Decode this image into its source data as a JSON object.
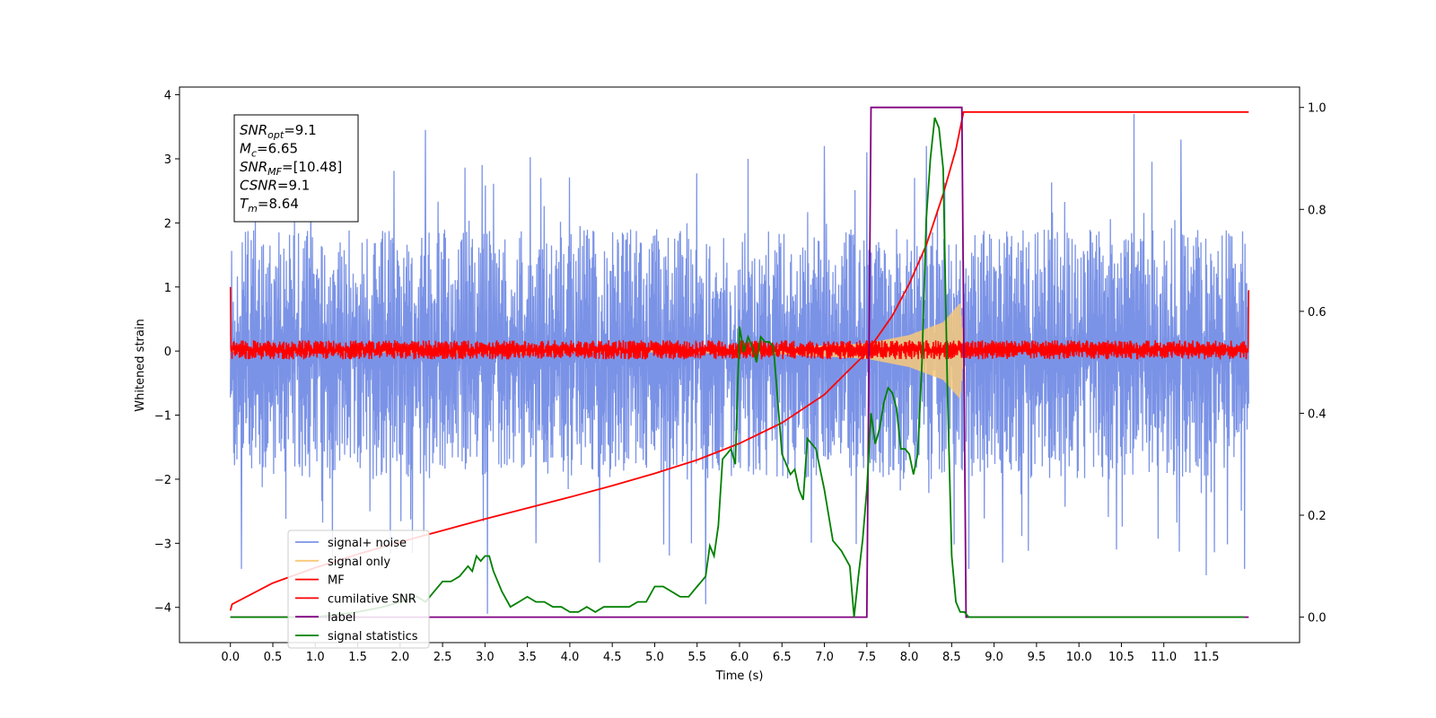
{
  "chart_data": {
    "type": "line",
    "xlabel": "Time (s)",
    "ylabel": "Whitened strain",
    "xlim": [
      -0.6,
      12.6
    ],
    "ylim": [
      -4.55,
      4.12
    ],
    "y2lim": [
      -0.05,
      1.04
    ],
    "xticks": [
      "0.0",
      "0.5",
      "1.0",
      "1.5",
      "2.0",
      "2.5",
      "3.0",
      "3.5",
      "4.0",
      "4.5",
      "5.0",
      "5.5",
      "6.0",
      "6.5",
      "7.0",
      "7.5",
      "8.0",
      "8.5",
      "9.0",
      "9.5",
      "10.0",
      "10.5",
      "11.0",
      "11.5"
    ],
    "yticks": [
      "4",
      "3",
      "2",
      "1",
      "0",
      "−1",
      "−2",
      "−3",
      "−4"
    ],
    "y2ticks": [
      "1.0",
      "0.8",
      "0.6",
      "0.4",
      "0.2",
      "0.0"
    ],
    "annotation": {
      "lines": [
        {
          "base": "SNR",
          "sub": "opt",
          "rest": "=9.1"
        },
        {
          "base": "M",
          "sub": "c",
          "rest": "=6.65"
        },
        {
          "base": "SNR",
          "sub": "MF",
          "rest": "=[10.48]"
        },
        {
          "base": "CSNR",
          "sub": "",
          "rest": "=9.1"
        },
        {
          "base": "T",
          "sub": "m",
          "rest": "=8.64"
        }
      ]
    },
    "legend": {
      "position": "lower-left",
      "entries": [
        {
          "label": "signal+ noise",
          "color": "#7b93e6"
        },
        {
          "label": "signal only",
          "color": "#f7c97a"
        },
        {
          "label": "MF",
          "color": "#ff0000"
        },
        {
          "label": "cumilative SNR",
          "color": "#ff0000"
        },
        {
          "label": "label",
          "color": "#800080"
        },
        {
          "label": "signal statistics",
          "color": "#008000"
        }
      ]
    },
    "series": [
      {
        "name": "signal+ noise",
        "axis": "left",
        "color": "#7b93e6",
        "kind": "noise_band",
        "x_range": [
          0.0,
          12.0
        ],
        "band": [
          -2.0,
          1.9
        ],
        "spikes": [
          [
            0.13,
            -3.4
          ],
          [
            1.2,
            -3.2
          ],
          [
            2.3,
            3.45
          ],
          [
            3.03,
            -4.1
          ],
          [
            3.6,
            -3.0
          ],
          [
            4.35,
            -3.3
          ],
          [
            5.6,
            -3.95
          ],
          [
            6.1,
            3.0
          ],
          [
            7.0,
            3.2
          ],
          [
            7.5,
            3.1
          ],
          [
            8.2,
            3.2
          ],
          [
            8.7,
            -3.4
          ],
          [
            9.1,
            -3.3
          ],
          [
            10.65,
            3.7
          ],
          [
            11.2,
            3.3
          ],
          [
            11.5,
            -3.5
          ],
          [
            11.95,
            -3.4
          ]
        ]
      },
      {
        "name": "signal only",
        "axis": "left",
        "color": "#f7c97a",
        "kind": "chirp_envelope",
        "x_range": [
          0.0,
          8.65
        ],
        "amplitude": [
          [
            0.0,
            0.005
          ],
          [
            5.0,
            0.02
          ],
          [
            6.5,
            0.05
          ],
          [
            7.5,
            0.12
          ],
          [
            8.0,
            0.25
          ],
          [
            8.4,
            0.45
          ],
          [
            8.6,
            0.75
          ],
          [
            8.65,
            0.0
          ]
        ]
      },
      {
        "name": "MF",
        "axis": "left",
        "color": "#ff0000",
        "kind": "noise_band",
        "x_range": [
          0.0,
          12.0
        ],
        "band": [
          -0.13,
          0.17
        ],
        "edges": [
          [
            0.0,
            1.0
          ],
          [
            12.0,
            0.95
          ]
        ]
      },
      {
        "name": "cumilative SNR",
        "axis": "left",
        "color": "#ff0000",
        "x": [
          0.0,
          0.02,
          0.5,
          1.0,
          1.5,
          2.0,
          2.5,
          3.0,
          3.5,
          4.0,
          4.5,
          5.0,
          5.5,
          6.0,
          6.5,
          7.0,
          7.5,
          7.8,
          8.0,
          8.2,
          8.4,
          8.55,
          8.64,
          9.0,
          10.0,
          11.0,
          12.0
        ],
        "y": [
          -4.05,
          -3.95,
          -3.62,
          -3.38,
          -3.17,
          -2.98,
          -2.8,
          -2.62,
          -2.45,
          -2.28,
          -2.1,
          -1.91,
          -1.7,
          -1.44,
          -1.12,
          -0.68,
          -0.02,
          0.55,
          1.05,
          1.65,
          2.45,
          3.15,
          3.73,
          3.73,
          3.73,
          3.73,
          3.73
        ]
      },
      {
        "name": "label",
        "axis": "right",
        "color": "#800080",
        "x": [
          0.0,
          7.5,
          7.55,
          8.62,
          8.67,
          12.0
        ],
        "y": [
          0.0,
          0.0,
          1.0,
          1.0,
          0.0,
          0.0
        ]
      },
      {
        "name": "signal statistics",
        "axis": "right",
        "color": "#008000",
        "x": [
          0.0,
          0.5,
          1.0,
          1.5,
          1.8,
          2.0,
          2.2,
          2.3,
          2.4,
          2.5,
          2.6,
          2.7,
          2.8,
          2.85,
          2.9,
          2.95,
          3.0,
          3.05,
          3.1,
          3.2,
          3.3,
          3.4,
          3.5,
          3.6,
          3.7,
          3.8,
          3.9,
          4.0,
          4.1,
          4.2,
          4.3,
          4.4,
          4.5,
          4.6,
          4.7,
          4.8,
          4.9,
          5.0,
          5.1,
          5.2,
          5.3,
          5.4,
          5.5,
          5.55,
          5.6,
          5.65,
          5.7,
          5.75,
          5.8,
          5.85,
          5.9,
          5.95,
          6.0,
          6.05,
          6.1,
          6.15,
          6.2,
          6.25,
          6.3,
          6.35,
          6.4,
          6.5,
          6.6,
          6.65,
          6.7,
          6.75,
          6.8,
          6.9,
          7.0,
          7.1,
          7.2,
          7.3,
          7.35,
          7.4,
          7.45,
          7.5,
          7.55,
          7.6,
          7.65,
          7.7,
          7.75,
          7.8,
          7.85,
          7.9,
          7.95,
          8.0,
          8.05,
          8.1,
          8.15,
          8.2,
          8.25,
          8.3,
          8.35,
          8.4,
          8.45,
          8.5,
          8.55,
          8.6,
          8.65,
          8.7,
          8.8,
          9.0,
          10.0,
          11.0,
          11.95
        ],
        "y": [
          0.0,
          0.0,
          0.0,
          0.01,
          0.02,
          0.03,
          0.04,
          0.03,
          0.05,
          0.07,
          0.07,
          0.08,
          0.1,
          0.09,
          0.12,
          0.11,
          0.12,
          0.12,
          0.09,
          0.05,
          0.02,
          0.03,
          0.04,
          0.03,
          0.03,
          0.02,
          0.02,
          0.01,
          0.01,
          0.02,
          0.01,
          0.02,
          0.02,
          0.02,
          0.02,
          0.03,
          0.03,
          0.06,
          0.06,
          0.05,
          0.04,
          0.04,
          0.06,
          0.07,
          0.08,
          0.14,
          0.12,
          0.18,
          0.31,
          0.32,
          0.33,
          0.3,
          0.57,
          0.52,
          0.55,
          0.53,
          0.5,
          0.55,
          0.54,
          0.54,
          0.53,
          0.32,
          0.28,
          0.29,
          0.25,
          0.23,
          0.35,
          0.33,
          0.25,
          0.15,
          0.13,
          0.1,
          0.0,
          0.08,
          0.15,
          0.25,
          0.4,
          0.34,
          0.37,
          0.42,
          0.45,
          0.44,
          0.41,
          0.33,
          0.33,
          0.32,
          0.28,
          0.32,
          0.5,
          0.78,
          0.9,
          0.98,
          0.96,
          0.88,
          0.45,
          0.12,
          0.03,
          0.01,
          0.01,
          0.0,
          0.0,
          0.0,
          0.0,
          0.0,
          0.0
        ]
      }
    ]
  }
}
